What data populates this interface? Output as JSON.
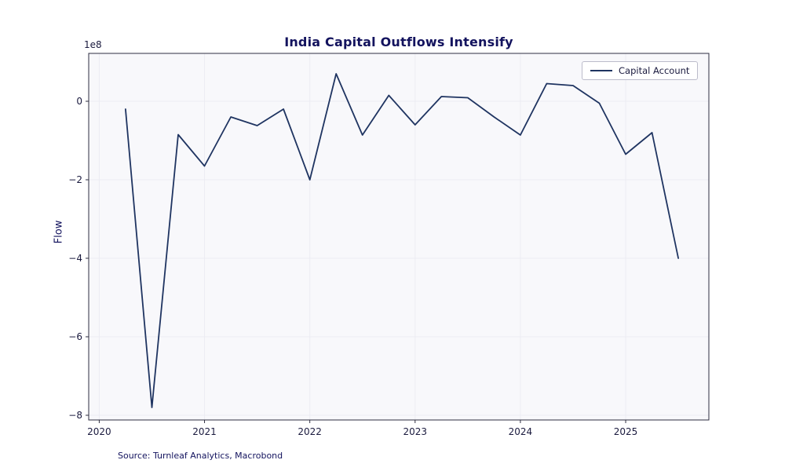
{
  "chart_data": {
    "type": "line",
    "title": "India Capital Outflows Intensify",
    "ylabel": "Flow",
    "xlabel": "",
    "y_offset_label": "1e8",
    "source": "Source: Turnleaf Analytics, Macrobond",
    "legend_position": "upper right",
    "grid": true,
    "xlim": [
      2019.9,
      2025.79
    ],
    "ylim": [
      -812000000,
      122000000
    ],
    "xticks": [
      2020,
      2021,
      2022,
      2023,
      2024,
      2025
    ],
    "xtick_labels": [
      "2020",
      "2021",
      "2022",
      "2023",
      "2024",
      "2025"
    ],
    "ytick_values": [
      0,
      -200000000,
      -400000000,
      -600000000,
      -800000000
    ],
    "ytick_labels": [
      "0",
      "−2",
      "−4",
      "−6",
      "−8"
    ],
    "x": [
      2020.25,
      2020.5,
      2020.75,
      2021.0,
      2021.25,
      2021.5,
      2021.75,
      2022.0,
      2022.25,
      2022.5,
      2022.75,
      2023.0,
      2023.25,
      2023.5,
      2023.75,
      2024.0,
      2024.25,
      2024.5,
      2024.75,
      2025.0,
      2025.25,
      2025.5
    ],
    "series": [
      {
        "name": "Capital Account",
        "color": "#1f3461",
        "values": [
          -20000000,
          -780000000,
          -85000000,
          -165000000,
          -40000000,
          -62000000,
          -20000000,
          -200000000,
          70000000,
          -86000000,
          15000000,
          -60000000,
          12000000,
          9000000,
          -40000000,
          -86000000,
          45000000,
          40000000,
          -5000000,
          -135000000,
          -80000000,
          -400000000
        ]
      }
    ],
    "colors": {
      "line": "#1f3461",
      "title_text": "#13135e",
      "tick_text": "#1a1a3e",
      "plot_bg": "#f8f8fb",
      "grid": "#ececf3",
      "frame": "#2e2e40"
    }
  }
}
